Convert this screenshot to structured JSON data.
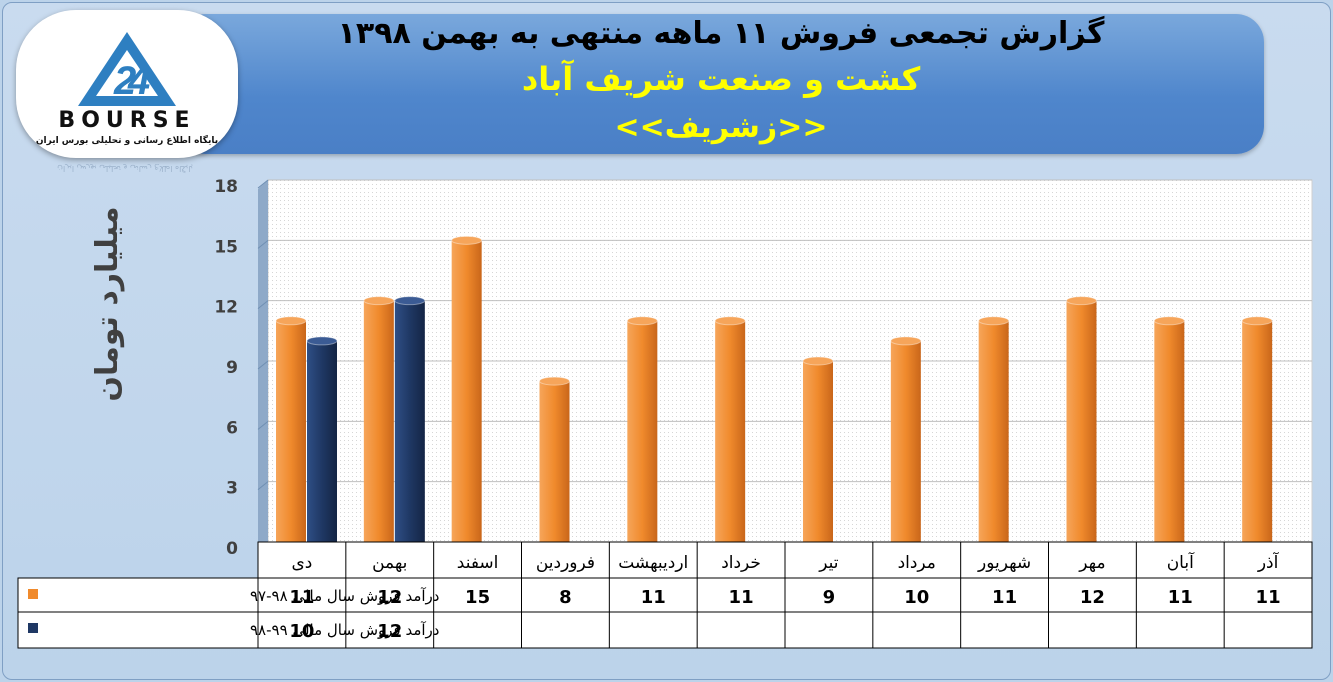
{
  "header": {
    "title_line1": "گزارش تجمعی فروش ۱۱ ماهه منتهی به بهمن ۱۳۹۸",
    "title_line2": "کشت و صنعت شریف آباد",
    "title_line3": "<<زشریف>>"
  },
  "logo": {
    "word": "BOURSE",
    "subtitle": "پایگاه اطلاع رسانی و تحلیلی بورس ایران",
    "reflection": "پایگاه اطلاع رسانی و تحلیلی بورس ایران"
  },
  "colors": {
    "series1": "#f08a2c",
    "series2": "#1f3864",
    "plot_bg": "#ffffff",
    "grid": "#bfbfbf"
  },
  "chart_data": {
    "type": "bar",
    "ylabel": "میلیارد تومان",
    "ylim": [
      0,
      18
    ],
    "yticks": [
      0,
      3,
      6,
      9,
      12,
      15,
      18
    ],
    "grid": true,
    "direction": "rtl",
    "categories": [
      "آذر",
      "آبان",
      "مهر",
      "شهریور",
      "مرداد",
      "تیر",
      "خرداد",
      "اردیبهشت",
      "فروردین",
      "اسفند",
      "بهمن",
      "دی"
    ],
    "series": [
      {
        "name": "درآمد فروش سال مالی ۹۸-۹۷",
        "values": [
          11,
          11,
          12,
          11,
          10,
          9,
          11,
          11,
          8,
          15,
          12,
          11
        ]
      },
      {
        "name": "درآمد فروش سال مالی ۹۹-۹۸",
        "values": [
          null,
          null,
          null,
          null,
          null,
          null,
          null,
          null,
          null,
          null,
          12,
          10
        ]
      }
    ]
  }
}
